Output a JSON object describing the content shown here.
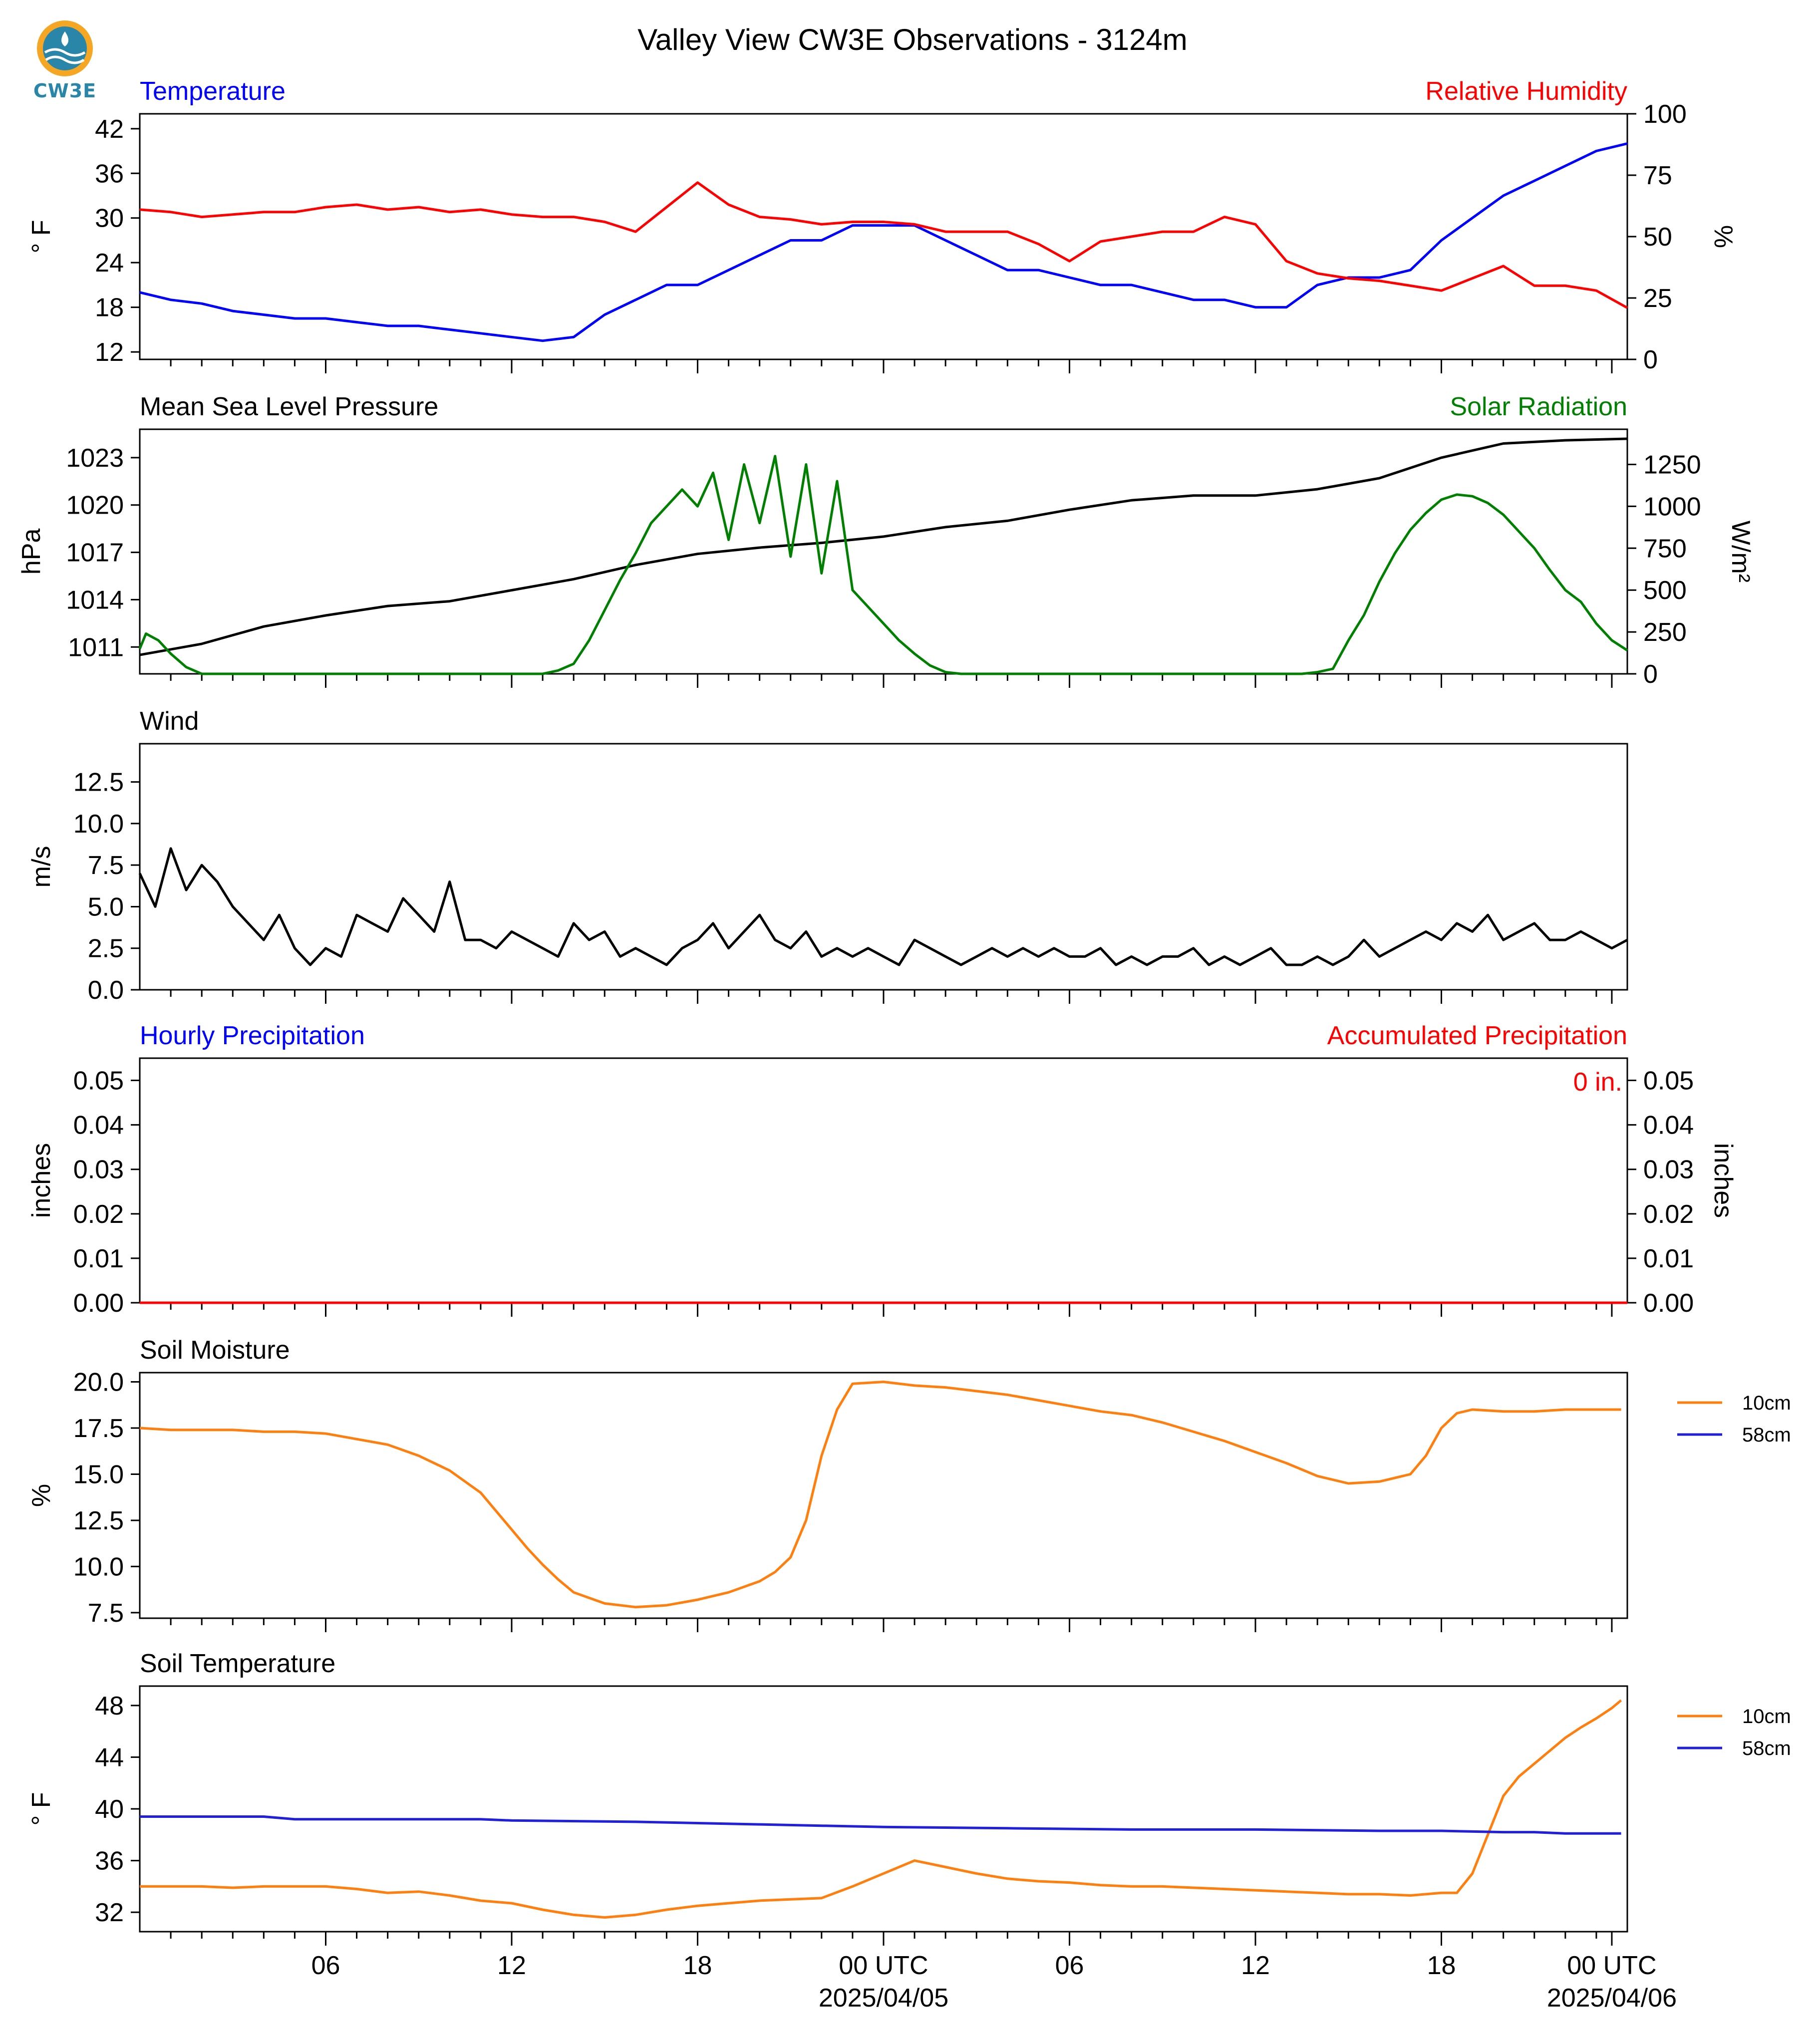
{
  "title": "Valley View CW3E Observations - 3124m",
  "logo_text": "CW3E",
  "colors": {
    "blue": "#0000ff",
    "red": "#ff0000",
    "green": "#008000",
    "black": "#000000",
    "orange": "#ff7f0e",
    "navy": "#1f1fdc"
  },
  "x_axis": {
    "range_hours": [
      0,
      48
    ],
    "tick_labels": [
      "06",
      "12",
      "18",
      "00 UTC",
      "06",
      "12",
      "18",
      "00 UTC"
    ],
    "date_labels": [
      "2025/04/05",
      "2025/04/06"
    ]
  },
  "chart_data": [
    {
      "type": "line",
      "left_title": "Temperature",
      "right_title": "Relative Humidity",
      "ylabel_left": "° F",
      "ylabel_right": "%",
      "ylim_left": [
        11,
        44
      ],
      "ylim_right": [
        0,
        100
      ],
      "yticks_left": [
        "42",
        "36",
        "30",
        "24",
        "18",
        "12"
      ],
      "yticks_right": [
        "100",
        "75",
        "50",
        "25",
        "0"
      ],
      "series": [
        {
          "name": "Temperature",
          "axis": "left",
          "color": "#0000ff",
          "x": [
            0,
            1,
            2,
            3,
            4,
            5,
            6,
            7,
            8,
            9,
            10,
            11,
            12,
            13,
            14,
            15,
            16,
            17,
            18,
            19,
            20,
            21,
            22,
            23,
            24,
            25,
            26,
            27,
            28,
            29,
            30,
            31,
            32,
            33,
            34,
            35,
            36,
            37,
            38,
            39,
            40,
            41,
            42,
            43,
            44,
            45,
            46,
            47,
            48
          ],
          "y": [
            20,
            19,
            18.5,
            17.5,
            17,
            16.5,
            16.5,
            16,
            15.5,
            15.5,
            15,
            14.5,
            14,
            13.5,
            14,
            17,
            19,
            21,
            21,
            23,
            25,
            27,
            27,
            29,
            29,
            29,
            27,
            25,
            23,
            23,
            22,
            21,
            21,
            20,
            19,
            19,
            18,
            18,
            21,
            22,
            22,
            23,
            27,
            30,
            33,
            35,
            37,
            39,
            40
          ]
        },
        {
          "name": "Relative Humidity",
          "axis": "right",
          "color": "#ff0000",
          "x": [
            0,
            1,
            2,
            3,
            4,
            5,
            6,
            7,
            8,
            9,
            10,
            11,
            12,
            13,
            14,
            15,
            16,
            17,
            18,
            19,
            20,
            21,
            22,
            23,
            24,
            25,
            26,
            27,
            28,
            29,
            30,
            31,
            32,
            33,
            34,
            35,
            36,
            37,
            38,
            39,
            40,
            41,
            42,
            43,
            44,
            45,
            46,
            47,
            48
          ],
          "y": [
            61,
            60,
            58,
            59,
            60,
            60,
            62,
            63,
            61,
            62,
            60,
            61,
            59,
            58,
            58,
            56,
            52,
            62,
            72,
            63,
            58,
            57,
            55,
            56,
            56,
            55,
            52,
            52,
            52,
            47,
            40,
            48,
            50,
            52,
            52,
            58,
            55,
            40,
            35,
            33,
            32,
            30,
            28,
            33,
            38,
            30,
            30,
            28,
            21
          ]
        }
      ]
    },
    {
      "type": "line",
      "left_title": "Mean Sea Level Pressure",
      "right_title": "Solar Radiation",
      "ylabel_left": "hPa",
      "ylabel_right": "W/m²",
      "ylim_left": [
        1009.3,
        1024.8
      ],
      "ylim_right": [
        0,
        1460
      ],
      "yticks_left": [
        "1023",
        "1020",
        "1017",
        "1014",
        "1011"
      ],
      "yticks_right": [
        "1250",
        "1000",
        "750",
        "500",
        "250",
        "0"
      ],
      "series": [
        {
          "name": "Mean Sea Level Pressure",
          "axis": "left",
          "color": "#000000",
          "x": [
            0,
            2,
            4,
            6,
            8,
            10,
            12,
            14,
            16,
            18,
            20,
            22,
            24,
            26,
            28,
            30,
            32,
            34,
            36,
            38,
            40,
            42,
            44,
            46,
            48
          ],
          "y": [
            1010.5,
            1011.2,
            1012.3,
            1013,
            1013.6,
            1013.9,
            1014.6,
            1015.3,
            1016.2,
            1016.9,
            1017.3,
            1017.6,
            1018,
            1018.6,
            1019,
            1019.7,
            1020.3,
            1020.6,
            1020.6,
            1021,
            1021.7,
            1023,
            1023.9,
            1024.1,
            1024.2
          ]
        },
        {
          "name": "Solar Radiation",
          "axis": "right",
          "color": "#008000",
          "x": [
            0,
            0.2,
            0.6,
            1,
            1.5,
            2,
            13,
            13.5,
            14,
            14.5,
            15,
            15.5,
            16,
            16.5,
            17,
            17.5,
            18,
            18.5,
            19,
            19.5,
            20,
            20.5,
            21,
            21.5,
            22,
            22.5,
            23,
            23.5,
            24,
            24.5,
            25,
            25.5,
            26,
            26.5,
            27,
            27.5,
            28,
            29,
            30,
            31,
            32,
            33,
            34,
            35,
            36,
            37,
            37.5,
            38,
            38.5,
            39,
            39.5,
            40,
            40.5,
            41,
            41.5,
            42,
            42.5,
            43,
            43.5,
            44,
            44.5,
            45,
            45.5,
            46,
            46.5,
            47,
            47.5,
            48
          ],
          "y": [
            150,
            240,
            200,
            120,
            40,
            0,
            0,
            20,
            60,
            200,
            380,
            560,
            720,
            900,
            1000,
            1100,
            1000,
            1200,
            800,
            1250,
            900,
            1300,
            700,
            1250,
            600,
            1150,
            500,
            400,
            300,
            200,
            120,
            50,
            10,
            0,
            0,
            0,
            0,
            0,
            0,
            0,
            0,
            0,
            0,
            0,
            0,
            0,
            0,
            10,
            30,
            200,
            350,
            550,
            720,
            860,
            960,
            1040,
            1070,
            1060,
            1020,
            950,
            850,
            750,
            620,
            500,
            430,
            300,
            200,
            140
          ]
        }
      ]
    },
    {
      "type": "line",
      "left_title": "Wind",
      "ylabel_left": "m/s",
      "ylim_left": [
        0,
        14.8
      ],
      "yticks_left": [
        "12.5",
        "10.0",
        "7.5",
        "5.0",
        "2.5",
        "0.0"
      ],
      "series": [
        {
          "name": "Wind speed",
          "axis": "left",
          "color": "#000000",
          "x": [
            0,
            0.5,
            1,
            1.5,
            2,
            2.5,
            3,
            3.5,
            4,
            4.5,
            5,
            5.5,
            6,
            6.5,
            7,
            7.5,
            8,
            8.5,
            9,
            9.5,
            10,
            10.5,
            11,
            11.5,
            12,
            12.5,
            13,
            13.5,
            14,
            14.5,
            15,
            15.5,
            16,
            16.5,
            17,
            17.5,
            18,
            18.5,
            19,
            19.5,
            20,
            20.5,
            21,
            21.5,
            22,
            22.5,
            23,
            23.5,
            24,
            24.5,
            25,
            25.5,
            26,
            26.5,
            27,
            27.5,
            28,
            28.5,
            29,
            29.5,
            30,
            30.5,
            31,
            31.5,
            32,
            32.5,
            33,
            33.5,
            34,
            34.5,
            35,
            35.5,
            36,
            36.5,
            37,
            37.5,
            38,
            38.5,
            39,
            39.5,
            40,
            40.5,
            41,
            41.5,
            42,
            42.5,
            43,
            43.5,
            44,
            44.5,
            45,
            45.5,
            46,
            46.5,
            47,
            47.5,
            48
          ],
          "y": [
            7,
            5,
            8.5,
            6,
            7.5,
            6.5,
            5,
            4,
            3,
            4.5,
            2.5,
            1.5,
            2.5,
            2,
            4.5,
            4,
            3.5,
            5.5,
            4.5,
            3.5,
            6.5,
            3,
            3,
            2.5,
            3.5,
            3,
            2.5,
            2,
            4,
            3,
            3.5,
            2,
            2.5,
            2,
            1.5,
            2.5,
            3,
            4,
            2.5,
            3.5,
            4.5,
            3,
            2.5,
            3.5,
            2,
            2.5,
            2,
            2.5,
            2,
            1.5,
            3,
            2.5,
            2,
            1.5,
            2,
            2.5,
            2,
            2.5,
            2,
            2.5,
            2,
            2,
            2.5,
            1.5,
            2,
            1.5,
            2,
            2,
            2.5,
            1.5,
            2,
            1.5,
            2,
            2.5,
            1.5,
            1.5,
            2,
            1.5,
            2,
            3,
            2,
            2.5,
            3,
            3.5,
            3,
            4,
            3.5,
            4.5,
            3,
            3.5,
            4,
            3,
            3,
            3.5,
            3,
            2.5,
            3
          ]
        }
      ]
    },
    {
      "type": "line",
      "left_title": "Hourly Precipitation",
      "right_title": "Accumulated Precipitation",
      "annotation": "0 in.",
      "ylabel_left": "inches",
      "ylabel_right": "inches",
      "ylim_left": [
        0,
        0.055
      ],
      "ylim_right": [
        0,
        0.055
      ],
      "yticks_left": [
        "0.05",
        "0.04",
        "0.03",
        "0.02",
        "0.01",
        "0.00"
      ],
      "yticks_right": [
        "0.05",
        "0.04",
        "0.03",
        "0.02",
        "0.01",
        "0.00"
      ],
      "series": [
        {
          "name": "Hourly Precipitation",
          "axis": "left",
          "color": "#0000ff",
          "x": [
            0,
            48
          ],
          "y": [
            0,
            0
          ]
        },
        {
          "name": "Accumulated Precipitation",
          "axis": "left",
          "color": "#ff0000",
          "x": [
            0,
            48
          ],
          "y": [
            0,
            0
          ]
        }
      ]
    },
    {
      "type": "line",
      "left_title": "Soil Moisture",
      "ylabel_left": "%",
      "ylim_left": [
        7.2,
        20.5
      ],
      "yticks_left": [
        "20.0",
        "17.5",
        "15.0",
        "12.5",
        "10.0",
        "7.5"
      ],
      "legend": [
        "10cm",
        "58cm"
      ],
      "series": [
        {
          "name": "10cm",
          "axis": "left",
          "color": "#ff7f0e",
          "x": [
            0,
            1,
            2,
            3,
            4,
            5,
            6,
            7,
            8,
            9,
            10,
            11,
            12,
            12.5,
            13,
            13.5,
            14,
            15,
            16,
            17,
            18,
            19,
            20,
            20.5,
            21,
            21.5,
            22,
            22.5,
            23,
            24,
            25,
            26,
            27,
            28,
            29,
            30,
            31,
            32,
            33,
            34,
            35,
            36,
            37,
            38,
            39,
            40,
            40.5,
            41,
            41.5,
            42,
            42.5,
            43,
            44,
            45,
            46,
            47,
            47.8
          ],
          "y": [
            17.5,
            17.4,
            17.4,
            17.4,
            17.3,
            17.3,
            17.2,
            16.9,
            16.6,
            16,
            15.2,
            14,
            12,
            11,
            10.1,
            9.3,
            8.6,
            8,
            7.8,
            7.9,
            8.2,
            8.6,
            9.2,
            9.7,
            10.5,
            12.5,
            16,
            18.5,
            19.9,
            20,
            19.8,
            19.7,
            19.5,
            19.3,
            19,
            18.7,
            18.4,
            18.2,
            17.8,
            17.3,
            16.8,
            16.2,
            15.6,
            14.9,
            14.5,
            14.6,
            14.8,
            15,
            16,
            17.5,
            18.3,
            18.5,
            18.4,
            18.4,
            18.5,
            18.5,
            18.5
          ]
        }
      ]
    },
    {
      "type": "line",
      "left_title": "Soil Temperature",
      "ylabel_left": "° F",
      "ylim_left": [
        30.5,
        49.5
      ],
      "yticks_left": [
        "48",
        "44",
        "40",
        "36",
        "32"
      ],
      "legend": [
        "10cm",
        "58cm"
      ],
      "series": [
        {
          "name": "10cm",
          "axis": "left",
          "color": "#ff7f0e",
          "x": [
            0,
            1,
            2,
            3,
            4,
            5,
            6,
            7,
            8,
            9,
            10,
            11,
            12,
            13,
            14,
            15,
            16,
            17,
            18,
            19,
            20,
            21,
            22,
            23,
            24,
            25,
            26,
            27,
            28,
            29,
            30,
            31,
            32,
            33,
            34,
            35,
            36,
            37,
            38,
            39,
            40,
            41,
            42,
            42.5,
            43,
            43.5,
            44,
            44.5,
            45,
            45.5,
            46,
            46.5,
            47,
            47.5,
            47.8
          ],
          "y": [
            34,
            34,
            34,
            33.9,
            34,
            34,
            34,
            33.8,
            33.5,
            33.6,
            33.3,
            32.9,
            32.7,
            32.2,
            31.8,
            31.6,
            31.8,
            32.2,
            32.5,
            32.7,
            32.9,
            33,
            33.1,
            34,
            35,
            36,
            35.5,
            35,
            34.6,
            34.4,
            34.3,
            34.1,
            34,
            34,
            33.9,
            33.8,
            33.7,
            33.6,
            33.5,
            33.4,
            33.4,
            33.3,
            33.5,
            33.5,
            35,
            38,
            41,
            42.5,
            43.5,
            44.5,
            45.5,
            46.3,
            47,
            47.8,
            48.4
          ]
        },
        {
          "name": "58cm",
          "axis": "left",
          "color": "#1f1fdc",
          "x": [
            0,
            4,
            4.5,
            5,
            8,
            11,
            12,
            16,
            20,
            24,
            28,
            32,
            36,
            40,
            42,
            44,
            45,
            46,
            47,
            47.8
          ],
          "y": [
            39.4,
            39.4,
            39.3,
            39.2,
            39.2,
            39.2,
            39.1,
            39,
            38.8,
            38.6,
            38.5,
            38.4,
            38.4,
            38.3,
            38.3,
            38.2,
            38.2,
            38.1,
            38.1,
            38.1
          ]
        }
      ]
    }
  ]
}
